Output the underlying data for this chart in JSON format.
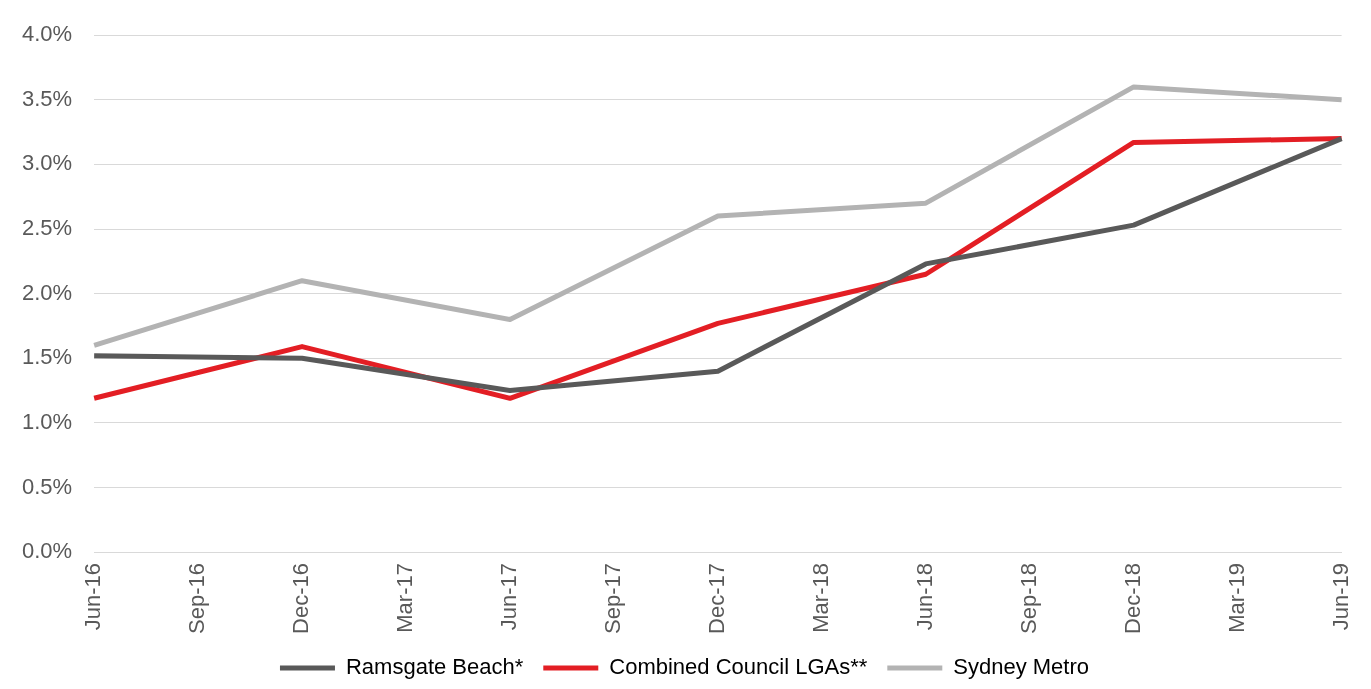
{
  "chart_data": {
    "type": "line",
    "categories": [
      "Jun-16",
      "Sep-16",
      "Dec-16",
      "Mar-17",
      "Jun-17",
      "Sep-17",
      "Dec-17",
      "Mar-18",
      "Jun-18",
      "Sep-18",
      "Dec-18",
      "Mar-19",
      "Jun-19"
    ],
    "series": [
      {
        "name": "Ramsgate Beach*",
        "color": "#595959",
        "values": [
          1.52,
          null,
          1.5,
          null,
          1.25,
          null,
          1.4,
          null,
          2.23,
          null,
          2.53,
          null,
          3.2
        ]
      },
      {
        "name": "Combined Council LGAs**",
        "color": "#e31e24",
        "values": [
          1.19,
          null,
          1.59,
          null,
          1.19,
          null,
          1.77,
          null,
          2.15,
          null,
          3.17,
          null,
          3.2
        ]
      },
      {
        "name": "Sydney Metro",
        "color": "#b3b3b3",
        "values": [
          1.6,
          null,
          2.1,
          null,
          1.8,
          null,
          2.6,
          null,
          2.7,
          null,
          3.6,
          null,
          3.5
        ]
      }
    ],
    "ylim": [
      0,
      4
    ],
    "yticks": [
      {
        "value": 0,
        "label": "0.0%"
      },
      {
        "value": 0.5,
        "label": "0.5%"
      },
      {
        "value": 1,
        "label": "1.0%"
      },
      {
        "value": 1.5,
        "label": "1.5%"
      },
      {
        "value": 2,
        "label": "2.0%"
      },
      {
        "value": 2.5,
        "label": "2.5%"
      },
      {
        "value": 3,
        "label": "3.0%"
      },
      {
        "value": 3.5,
        "label": "3.5%"
      },
      {
        "value": 4,
        "label": "4.0%"
      }
    ],
    "grid": "y",
    "legend": "bottom",
    "marker": "none",
    "line_style": "solid"
  }
}
